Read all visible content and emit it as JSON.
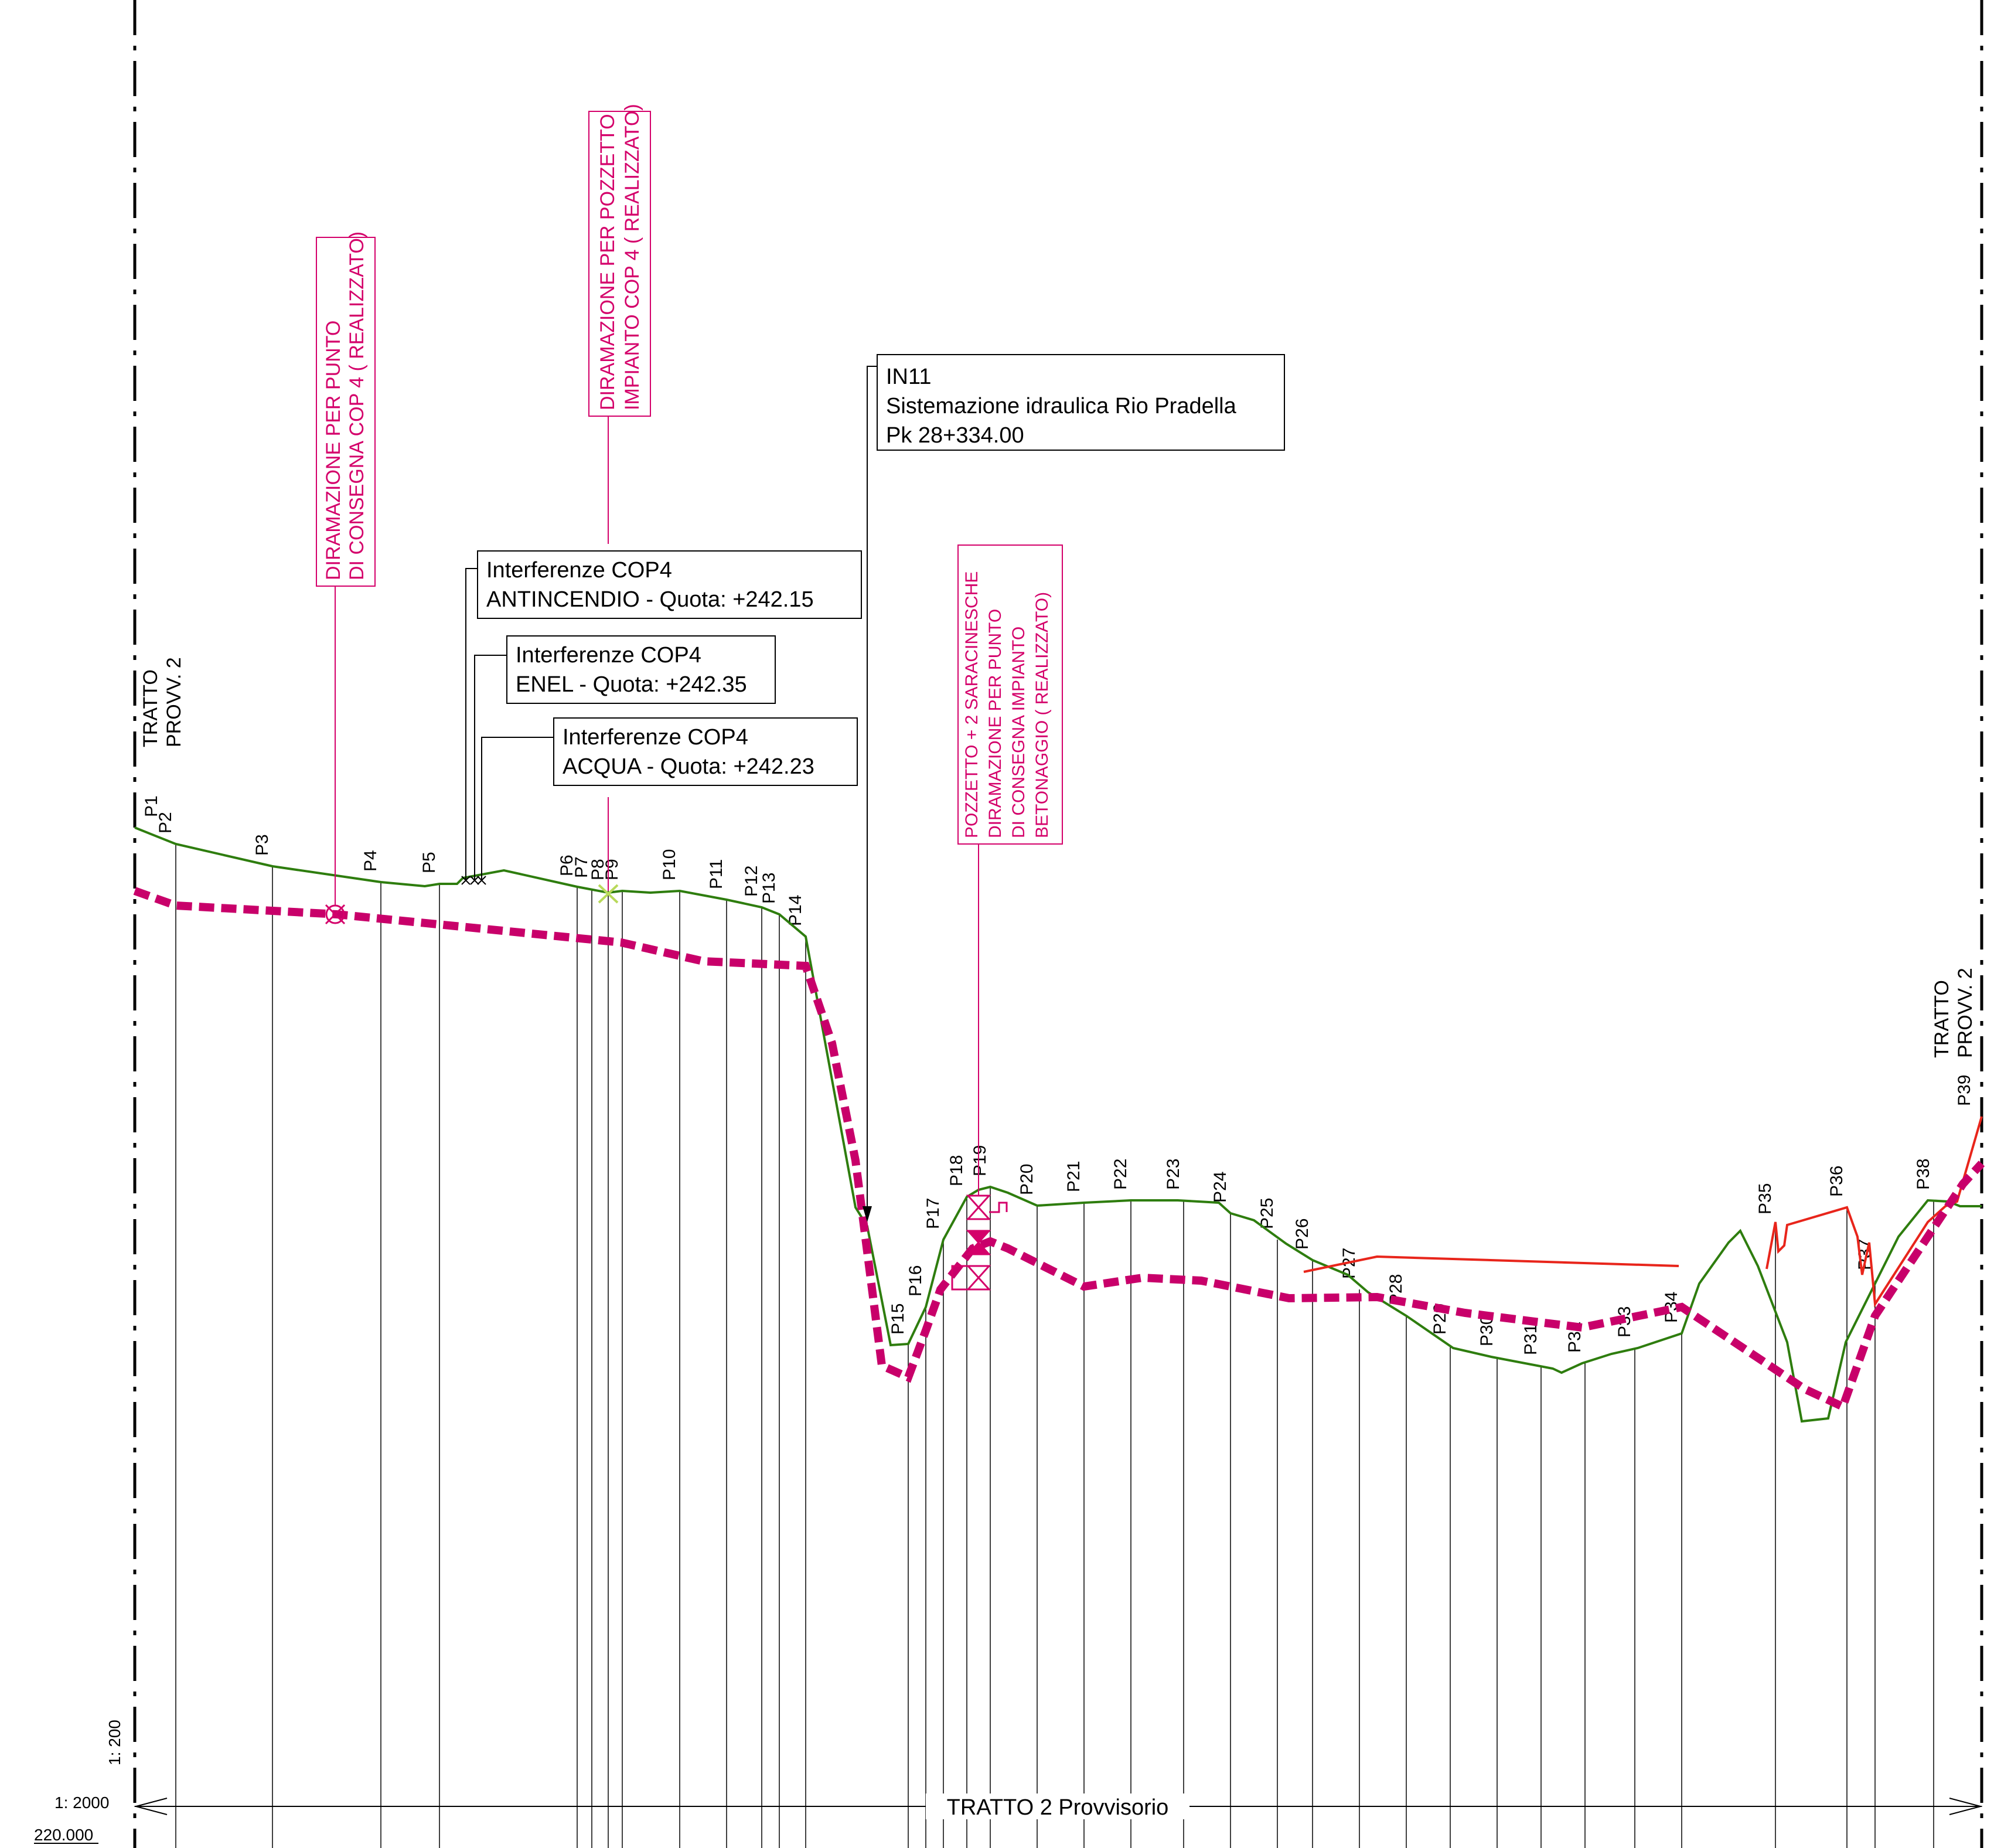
{
  "section": {
    "top_label": [
      "TRATTO",
      "PROVV. 2"
    ],
    "title": "TRATTO  2 Provvisorio"
  },
  "scales": {
    "vertical": "1: 200",
    "horizontal": "1: 2000",
    "datum": "220.000"
  },
  "points": [
    "P1",
    "P2",
    "P3",
    "P4",
    "P5",
    "P6",
    "P7",
    "P8",
    "P9",
    "P10",
    "P11",
    "P12",
    "P13",
    "P14",
    "P15",
    "P16",
    "P17",
    "P18",
    "P19",
    "P20",
    "P21",
    "P22",
    "P23",
    "P24",
    "P25",
    "P26",
    "P27",
    "P28",
    "P29",
    "P30",
    "P31",
    "P32",
    "P33",
    "P34",
    "P35",
    "P36",
    "P37",
    "P38",
    "P39"
  ],
  "callouts": {
    "in11": [
      "IN11",
      "Sistemazione idraulica Rio Pradella",
      "Pk 28+334.00"
    ],
    "antincendio": [
      "Interferenze COP4",
      "ANTINCENDIO - Quota: +242.15"
    ],
    "enel": [
      "Interferenze COP4",
      "ENEL - Quota: +242.35"
    ],
    "acqua": [
      "Interferenze COP4",
      "ACQUA - Quota: +242.23"
    ]
  },
  "annotations": {
    "diramazione_consegna": [
      "DIRAMAZIONE PER PUNTO",
      "DI CONSEGNA COP 4 ( REALIZZATO)"
    ],
    "diramazione_pozzetto": [
      "DIRAMAZIONE PER POZZETTO",
      "IMPIANTO COP 4 ( REALIZZATO)"
    ],
    "pozzetto_saracinesche": [
      "POZZETTO + 2 SARACINESCHE",
      "DIRAMAZIONE PER PUNTO",
      "DI CONSEGNA IMPIANTO",
      "BETONAGGIO ( REALIZZATO)"
    ]
  },
  "colors": {
    "ground_profile": "#2e7d0e",
    "pipe_profile": "#c8006a",
    "existing_profile": "#e8251b",
    "annotation": "#d4006a",
    "linework": "#000000"
  }
}
